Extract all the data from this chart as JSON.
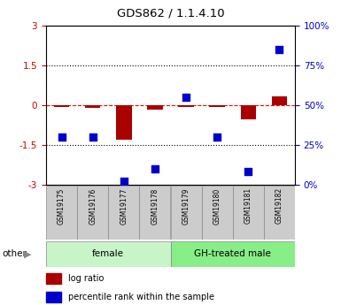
{
  "title": "GDS862 / 1.1.4.10",
  "samples": [
    "GSM19175",
    "GSM19176",
    "GSM19177",
    "GSM19178",
    "GSM19179",
    "GSM19180",
    "GSM19181",
    "GSM19182"
  ],
  "log_ratio": [
    -0.08,
    -0.1,
    -1.3,
    -0.15,
    -0.05,
    -0.08,
    -0.55,
    0.35
  ],
  "percentile_rank": [
    30,
    30,
    2,
    10,
    55,
    30,
    8,
    85
  ],
  "ylim_left": [
    -3,
    3
  ],
  "ylim_right": [
    0,
    100
  ],
  "yticks_left": [
    -3,
    -1.5,
    0,
    1.5,
    3
  ],
  "yticks_right": [
    0,
    25,
    50,
    75,
    100
  ],
  "ytick_labels_left": [
    "-3",
    "-1.5",
    "0",
    "1.5",
    "3"
  ],
  "ytick_labels_right": [
    "0%",
    "25%",
    "50%",
    "75%",
    "100%"
  ],
  "hlines": [
    -1.5,
    0,
    1.5
  ],
  "hline_styles": [
    "dotted",
    "dashed",
    "dotted"
  ],
  "hline_colors": [
    "black",
    "red",
    "black"
  ],
  "group_labels": [
    "female",
    "GH-treated male"
  ],
  "group_ranges": [
    [
      0,
      3
    ],
    [
      4,
      7
    ]
  ],
  "group_colors_light": [
    "#c8f5c8",
    "#88ee88"
  ],
  "bar_color": "#aa0000",
  "dot_color": "#0000cc",
  "bar_width": 0.5,
  "dot_size": 28,
  "tick_label_color_left": "#cc0000",
  "tick_label_color_right": "#0000cc",
  "legend_log_ratio_color": "#aa0000",
  "legend_percentile_color": "#0000cc",
  "sample_box_color": "#cccccc",
  "other_label": "other"
}
